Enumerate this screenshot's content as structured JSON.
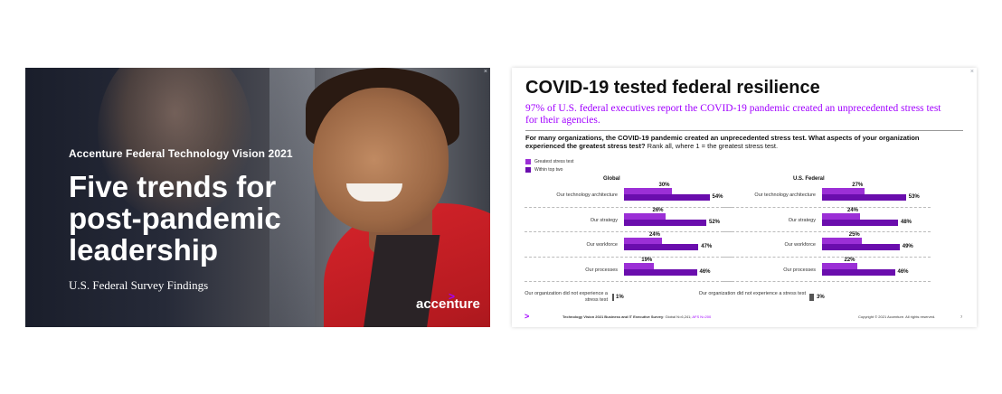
{
  "slide1": {
    "eyebrow": "Accenture Federal Technology Vision 2021",
    "title": "Five trends for post-pandemic leadership",
    "subtitle": "U.S. Federal Survey Findings",
    "logo_text": "accenture",
    "logo_mark": ">",
    "close_glyph": "×"
  },
  "slide2": {
    "title": "COVID-19 tested federal resilience",
    "subtitle": "97% of U.S. federal executives report the COVID-19 pandemic created an unprecedented stress test for their agencies.",
    "question_bold": "For many organizations, the COVID-19 pandemic created an unprecedented stress test. What aspects of your organization experienced the greatest stress test?",
    "question_rest": " Rank all, where 1 = the greatest stress test.",
    "close_glyph": "×",
    "footer": {
      "mark": ">",
      "source_bold": "Technology Vision 2021 Business and IT Executive Survey",
      "source_rest": ": Global N=6,241; ",
      "source_accent": "AFS N=200",
      "copyright": "Copyright © 2021 Accenture. All rights reserved.",
      "page": "7"
    }
  },
  "colors": {
    "accent": "#a100ff",
    "greatest": "#9b2fd6",
    "top_two": "#6a0dad",
    "blazer": "#d7242b"
  },
  "chart_data": {
    "type": "bar",
    "legend": [
      "Greatest stress test",
      "Within top two"
    ],
    "categories": [
      "Our technology architecture",
      "Our strategy",
      "Our workforce",
      "Our processes"
    ],
    "panels": [
      {
        "title": "Global",
        "series": [
          {
            "name": "Greatest stress test",
            "values": [
              30,
              26,
              24,
              19
            ]
          },
          {
            "name": "Within top two",
            "values": [
              54,
              52,
              47,
              46
            ]
          }
        ],
        "no_stress_label": "Our organization did not experience a stress test",
        "no_stress_value": 1
      },
      {
        "title": "U.S. Federal",
        "series": [
          {
            "name": "Greatest stress test",
            "values": [
              27,
              24,
              25,
              22
            ]
          },
          {
            "name": "Within top two",
            "values": [
              53,
              48,
              49,
              46
            ]
          }
        ],
        "no_stress_label": "Our organization did not experience a stress test",
        "no_stress_value": 3
      }
    ],
    "unit": "%"
  }
}
